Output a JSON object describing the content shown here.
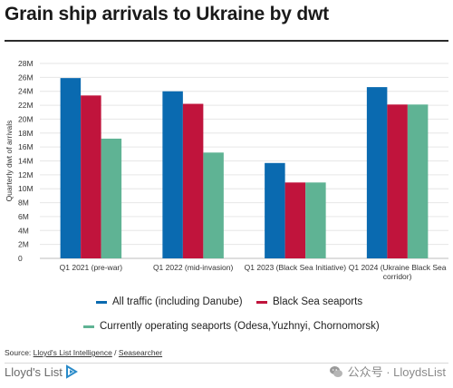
{
  "title": "Grain ship arrivals to Ukraine by dwt",
  "source": {
    "prefix": "Source: ",
    "link1": "Lloyd's List Intelligence",
    "sep": " / ",
    "link2": "Seasearcher"
  },
  "brand": {
    "name": "Lloyd's List"
  },
  "watermark": {
    "text": "公众号 · LloydsList",
    "icon": "wechat-icon"
  },
  "colors": {
    "all_traffic": "#0a6ab0",
    "black_sea": "#c0143c",
    "operating": "#5fb394",
    "grid": "#e6e6e6",
    "axis": "#bdbdbd"
  },
  "chart_data": {
    "type": "bar",
    "title": "Grain ship arrivals to Ukraine by dwt",
    "ylabel": "Quarterly dwt of arrivals",
    "xlabel": "",
    "ylim": [
      0,
      28
    ],
    "yticks": [
      "0",
      "2M",
      "4M",
      "6M",
      "8M",
      "10M",
      "12M",
      "14M",
      "16M",
      "18M",
      "20M",
      "22M",
      "24M",
      "26M",
      "28M"
    ],
    "categories": [
      [
        "Q1 2021 (pre-war)"
      ],
      [
        "Q1 2022 (mid-invasion)"
      ],
      [
        "Q1 2023 (Black Sea Initiative)"
      ],
      [
        "Q1 2024 (Ukraine Black Sea",
        "corridor)"
      ]
    ],
    "series": [
      {
        "name": "All traffic (including Danube)",
        "color": "#0a6ab0",
        "values": [
          25.9,
          24.0,
          13.7,
          24.6
        ]
      },
      {
        "name": "Black Sea seaports",
        "color": "#c0143c",
        "values": [
          23.4,
          22.2,
          10.9,
          22.1
        ]
      },
      {
        "name": "Currently operating seaports (Odesa,Yuzhnyi, Chornomorsk)",
        "color": "#5fb394",
        "values": [
          17.2,
          15.2,
          10.9,
          22.1
        ]
      }
    ],
    "grid": true,
    "legend": "bottom"
  }
}
